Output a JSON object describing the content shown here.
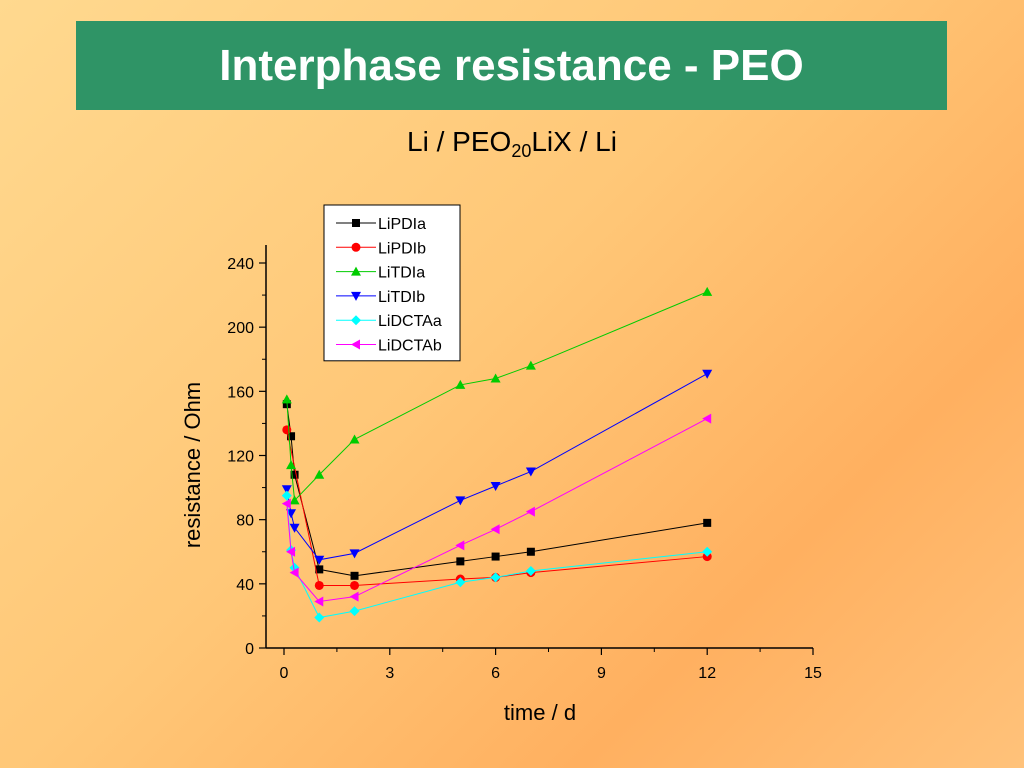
{
  "slide": {
    "title": "Interphase resistance - PEO",
    "subtitle_pre": "Li / PEO",
    "subtitle_sub": "20",
    "subtitle_post": "LiX / Li"
  },
  "colors": {
    "title_bg": "#2f9466",
    "background": "#ffcc80"
  },
  "chart_data": {
    "type": "line",
    "xlabel": "time / d",
    "ylabel": "resistance / Ohm",
    "xlim": [
      0,
      15
    ],
    "ylim": [
      0,
      240
    ],
    "xticks": [
      0,
      3,
      6,
      9,
      12,
      15
    ],
    "yticks": [
      0,
      40,
      80,
      120,
      160,
      200,
      240
    ],
    "legend_position": "top-left",
    "grid": false,
    "series": [
      {
        "name": "LiPDIa",
        "color": "#000000",
        "marker": "square",
        "x": [
          0.08,
          0.2,
          0.3,
          1,
          2,
          5,
          6,
          7,
          12
        ],
        "y": [
          152,
          132,
          108,
          49,
          45,
          54,
          57,
          60,
          78
        ]
      },
      {
        "name": "LiPDIb",
        "color": "#ff0000",
        "marker": "circle",
        "x": [
          0.08,
          1,
          2,
          5,
          6,
          7,
          12
        ],
        "y": [
          136,
          39,
          39,
          43,
          44,
          47,
          57
        ]
      },
      {
        "name": "LiTDIa",
        "color": "#00cc00",
        "marker": "triangle-up",
        "x": [
          0.08,
          0.2,
          0.3,
          1,
          2,
          5,
          6,
          7,
          12
        ],
        "y": [
          155,
          114,
          92,
          108,
          130,
          164,
          168,
          176,
          222
        ]
      },
      {
        "name": "LiTDIb",
        "color": "#0000ff",
        "marker": "triangle-down",
        "x": [
          0.08,
          0.2,
          0.3,
          1,
          2,
          5,
          6,
          7,
          12
        ],
        "y": [
          99,
          84,
          75,
          55,
          59,
          92,
          101,
          110,
          171
        ]
      },
      {
        "name": "LiDCTAa",
        "color": "#00ffff",
        "marker": "diamond",
        "x": [
          0.08,
          0.2,
          0.3,
          1,
          2,
          5,
          6,
          7,
          12
        ],
        "y": [
          95,
          61,
          50,
          19,
          23,
          41,
          44,
          48,
          60
        ]
      },
      {
        "name": "LiDCTAb",
        "color": "#ff00ff",
        "marker": "triangle-left",
        "x": [
          0.08,
          0.2,
          0.3,
          1,
          2,
          5,
          6,
          7,
          12
        ],
        "y": [
          90,
          60,
          47,
          29,
          32,
          64,
          74,
          85,
          143
        ]
      }
    ]
  }
}
